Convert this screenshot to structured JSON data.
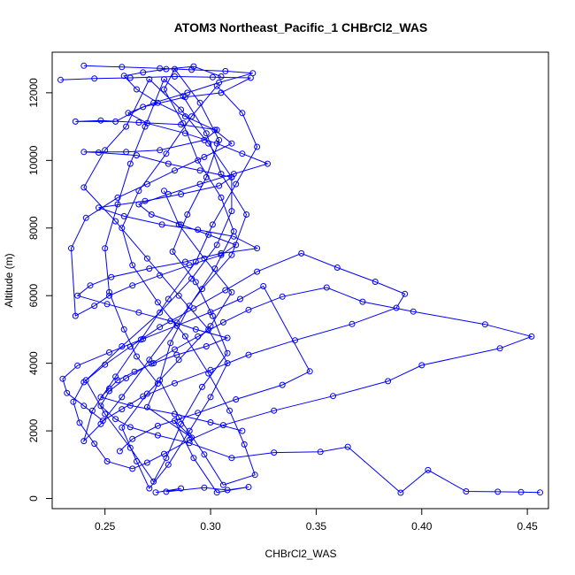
{
  "chart_data": {
    "type": "scatter",
    "title": "ATOM3 Northeast_Pacific_1 CHBrCl2_WAS",
    "xlabel": "CHBrCl2_WAS",
    "ylabel": "Altitude (m)",
    "xlim": [
      0.225,
      0.46
    ],
    "ylim": [
      -300,
      13200
    ],
    "x_ticks": [
      0.25,
      0.3,
      0.35,
      0.4,
      0.45
    ],
    "x_tick_labels": [
      "0.25",
      "0.30",
      "0.35",
      "0.40",
      "0.45"
    ],
    "y_ticks": [
      0,
      2000,
      4000,
      6000,
      8000,
      10000,
      12000
    ],
    "y_tick_labels": [
      "0",
      "2000",
      "4000",
      "6000",
      "8000",
      "10000",
      "12000"
    ],
    "grid": false,
    "legend": "none",
    "color": "#0000ff",
    "series": [
      {
        "connected": true,
        "x": [
          0.274,
          0.286,
          0.279,
          0.297,
          0.308,
          0.318,
          0.303,
          0.292,
          0.283,
          0.291,
          0.27,
          0.275,
          0.265,
          0.259,
          0.252,
          0.25,
          0.256,
          0.262,
          0.269,
          0.278,
          0.287,
          0.298,
          0.305,
          0.317,
          0.31,
          0.296,
          0.284,
          0.271,
          0.258,
          0.248,
          0.24,
          0.244,
          0.255,
          0.267,
          0.28,
          0.293,
          0.301,
          0.312,
          0.322,
          0.315,
          0.303,
          0.291,
          0.279,
          0.266,
          0.258,
          0.263,
          0.275,
          0.288,
          0.299,
          0.309,
          0.316,
          0.321,
          0.306,
          0.297,
          0.285,
          0.276,
          0.281,
          0.29,
          0.302,
          0.311,
          0.305,
          0.294,
          0.287,
          0.278,
          0.283,
          0.295,
          0.304,
          0.298,
          0.289,
          0.282,
          0.293,
          0.301,
          0.308,
          0.296,
          0.286,
          0.279,
          0.273,
          0.262,
          0.25,
          0.241,
          0.258,
          0.276,
          0.291,
          0.303,
          0.31,
          0.31,
          0.299,
          0.286,
          0.271,
          0.26,
          0.25,
          0.24,
          0.255,
          0.27,
          0.285,
          0.299,
          0.308,
          0.3,
          0.29,
          0.28,
          0.271,
          0.265,
          0.258,
          0.27,
          0.285,
          0.3,
          0.31,
          0.297,
          0.285,
          0.278
        ],
        "y": [
          180,
          300,
          200,
          320,
          250,
          340,
          180,
          1200,
          2300,
          1800,
          2700,
          3400,
          4200,
          5000,
          6100,
          7400,
          8700,
          9900,
          11000,
          12400,
          11900,
          10800,
          9600,
          8400,
          7200,
          6200,
          5200,
          4100,
          3000,
          2200,
          1700,
          2600,
          3600,
          4700,
          5900,
          7000,
          8100,
          9300,
          10400,
          11400,
          12200,
          11300,
          10200,
          9100,
          8000,
          6900,
          5800,
          4800,
          3700,
          2600,
          1600,
          700,
          400,
          1300,
          2400,
          3500,
          4600,
          5700,
          6800,
          7900,
          8900,
          10000,
          11100,
          12100,
          12700,
          11700,
          10600,
          9500,
          8400,
          7300,
          6400,
          5400,
          4300,
          3300,
          2200,
          1200,
          500,
          1500,
          2500,
          3500,
          4500,
          5500,
          6500,
          7500,
          8500,
          9500,
          10500,
          11500,
          12400,
          11000,
          10300,
          9200,
          8200,
          7100,
          6000,
          5000,
          4000,
          3000,
          2000,
          1000,
          300,
          1100,
          2100,
          3100,
          4100,
          5100,
          6100,
          7100,
          8100,
          9100
        ]
      },
      {
        "connected": true,
        "x": [
          0.456,
          0.447,
          0.436,
          0.421,
          0.403,
          0.39,
          0.365,
          0.352,
          0.33,
          0.31,
          0.29,
          0.275,
          0.262,
          0.255,
          0.248,
          0.252,
          0.26,
          0.272,
          0.283,
          0.294,
          0.306,
          0.318,
          0.334,
          0.355,
          0.372,
          0.396,
          0.43,
          0.452,
          0.437,
          0.4,
          0.384,
          0.358,
          0.33,
          0.306,
          0.29,
          0.278,
          0.27,
          0.263,
          0.251,
          0.245,
          0.238,
          0.235,
          0.24,
          0.25,
          0.262,
          0.276,
          0.292,
          0.307,
          0.322,
          0.343,
          0.36,
          0.378,
          0.392,
          0.388,
          0.367,
          0.34,
          0.318,
          0.3,
          0.283,
          0.268,
          0.258,
          0.249,
          0.24,
          0.232,
          0.23,
          0.237,
          0.252,
          0.268,
          0.284,
          0.3,
          0.314,
          0.325,
          0.347,
          0.334,
          0.312,
          0.294,
          0.275,
          0.263,
          0.257
        ],
        "y": [
          180,
          190,
          200,
          210,
          840,
          170,
          1530,
          1380,
          1360,
          1200,
          1640,
          1870,
          2110,
          2350,
          2740,
          3180,
          3560,
          3990,
          4410,
          4790,
          5210,
          5580,
          5970,
          6240,
          5820,
          5530,
          5150,
          4790,
          4440,
          3940,
          3470,
          3030,
          2600,
          2170,
          1730,
          1320,
          1060,
          880,
          1100,
          1620,
          2240,
          2860,
          3440,
          3960,
          4490,
          5070,
          5620,
          6160,
          6710,
          7250,
          6830,
          6410,
          6050,
          5640,
          5160,
          4680,
          4250,
          3800,
          3410,
          3020,
          2640,
          2300,
          2740,
          3120,
          3540,
          3930,
          4320,
          4720,
          5110,
          5510,
          5900,
          6280,
          3760,
          3360,
          2930,
          2530,
          2150,
          1760,
          1400
        ]
      },
      {
        "connected": true,
        "x": [
          0.229,
          0.245,
          0.262,
          0.283,
          0.301,
          0.319,
          0.305,
          0.288,
          0.268,
          0.255,
          0.236,
          0.248,
          0.266,
          0.286,
          0.303,
          0.297,
          0.276,
          0.26,
          0.24,
          0.247,
          0.265,
          0.28,
          0.295,
          0.31,
          0.304,
          0.286,
          0.269,
          0.247,
          0.259,
          0.277,
          0.294,
          0.311,
          0.322,
          0.305,
          0.288,
          0.271,
          0.253,
          0.243,
          0.237,
          0.251,
          0.266,
          0.281,
          0.293,
          0.308,
          0.298,
          0.284,
          0.273,
          0.264,
          0.256,
          0.252,
          0.248,
          0.262,
          0.283,
          0.3,
          0.315
        ],
        "y": [
          12380,
          12420,
          12440,
          12480,
          12460,
          12440,
          12000,
          11870,
          11580,
          11150,
          11150,
          11180,
          11120,
          11060,
          10900,
          10600,
          10300,
          10250,
          10250,
          10230,
          10150,
          9900,
          9700,
          9500,
          9250,
          9000,
          8800,
          8600,
          8350,
          8100,
          7950,
          7750,
          7400,
          7250,
          7000,
          6800,
          6550,
          6300,
          6000,
          5750,
          5500,
          5250,
          5000,
          4750,
          4500,
          4250,
          4000,
          3750,
          3500,
          3250,
          3000,
          2750,
          2500,
          2250,
          2000
        ]
      },
      {
        "connected": true,
        "x": [
          0.24,
          0.258,
          0.276,
          0.291,
          0.307,
          0.32,
          0.304,
          0.289,
          0.273,
          0.261,
          0.27,
          0.288,
          0.303,
          0.315,
          0.327,
          0.311,
          0.295,
          0.28,
          0.266,
          0.272,
          0.286,
          0.299,
          0.312,
          0.305,
          0.29,
          0.276,
          0.263,
          0.252,
          0.245,
          0.236,
          0.234,
          0.241,
          0.256,
          0.27,
          0.283,
          0.297,
          0.31,
          0.302,
          0.288,
          0.275,
          0.265,
          0.259,
          0.268,
          0.279,
          0.292,
          0.305
        ],
        "y": [
          12800,
          12760,
          12720,
          12680,
          12640,
          12580,
          12300,
          12000,
          11700,
          11400,
          11100,
          10800,
          10500,
          10200,
          9900,
          9600,
          9300,
          9000,
          8700,
          8400,
          8100,
          7800,
          7500,
          7200,
          6900,
          6600,
          6300,
          6000,
          5700,
          5400,
          7400,
          8300,
          8900,
          9300,
          9700,
          10100,
          10500,
          10900,
          11300,
          11700,
          12100,
          12500,
          12600,
          12700,
          12780,
          12480
        ]
      }
    ]
  }
}
